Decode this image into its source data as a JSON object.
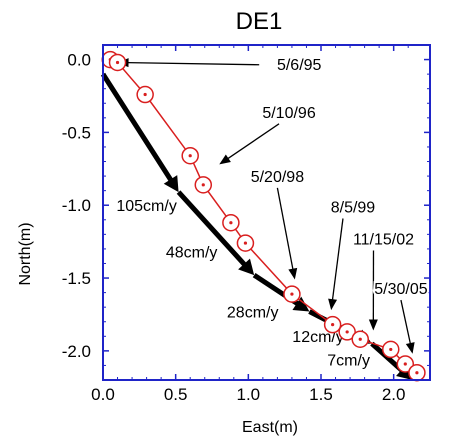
{
  "chart_data": {
    "type": "line",
    "title": "DE1",
    "xlabel": "East(m)",
    "ylabel": "North(m)",
    "xlim": [
      0.0,
      2.25
    ],
    "ylim": [
      -2.2,
      0.1
    ],
    "x_ticks": [
      0.0,
      0.5,
      1.0,
      1.5,
      2.0
    ],
    "x_tick_labels": [
      "0.0",
      "0.5",
      "1.0",
      "1.5",
      "2.0"
    ],
    "y_ticks": [
      0.0,
      -0.5,
      -1.0,
      -1.5,
      -2.0
    ],
    "y_tick_labels": [
      "0.0",
      "-0.5",
      "-1.0",
      "-1.5",
      "-2.0"
    ],
    "grid": false,
    "colors": {
      "series": "#d91f1f",
      "frame": "#1f24c8",
      "arrows": "#000000"
    },
    "series": [
      {
        "x": [
          0.05,
          0.1,
          0.29,
          0.6,
          0.69,
          0.88,
          0.98,
          1.3,
          1.58,
          1.68,
          1.77,
          1.98,
          2.08,
          2.16
        ],
        "y": [
          0.0,
          -0.02,
          -0.24,
          -0.66,
          -0.86,
          -1.12,
          -1.26,
          -1.61,
          -1.82,
          -1.87,
          -1.92,
          -1.99,
          -2.09,
          -2.15
        ]
      }
    ],
    "annotations": [
      {
        "text": "5/6/95",
        "x": 1.35,
        "y": -0.07,
        "target": [
          0.1,
          -0.02
        ]
      },
      {
        "text": "5/10/96",
        "x": 1.28,
        "y": -0.4,
        "target": [
          0.8,
          -0.72
        ]
      },
      {
        "text": "5/20/98",
        "x": 1.2,
        "y": -0.84,
        "target": [
          1.32,
          -1.51
        ]
      },
      {
        "text": "8/5/99",
        "x": 1.72,
        "y": -1.05,
        "target": [
          1.57,
          -1.72
        ]
      },
      {
        "text": "11/15/02",
        "x": 1.93,
        "y": -1.27,
        "target": [
          1.86,
          -1.86
        ]
      },
      {
        "text": "5/30/05",
        "x": 2.05,
        "y": -1.61,
        "target": [
          2.13,
          -2.02
        ]
      }
    ],
    "velocity_labels": [
      {
        "text": "105cm/y",
        "x": 0.3,
        "y": -1.04
      },
      {
        "text": "48cm/y",
        "x": 0.61,
        "y": -1.36
      },
      {
        "text": "28cm/y",
        "x": 1.03,
        "y": -1.77
      },
      {
        "text": "12cm/y",
        "x": 1.48,
        "y": -1.94
      },
      {
        "text": "7cm/y",
        "x": 1.69,
        "y": -2.1
      }
    ],
    "velocity_arrows": [
      {
        "from": [
          0.0,
          -0.1
        ],
        "to": [
          0.52,
          -0.91
        ]
      },
      {
        "from": [
          0.52,
          -0.91
        ],
        "to": [
          1.04,
          -1.48
        ]
      },
      {
        "from": [
          1.04,
          -1.48
        ],
        "to": [
          1.42,
          -1.73
        ]
      },
      {
        "from": [
          1.42,
          -1.73
        ],
        "to": [
          1.85,
          -1.95
        ]
      },
      {
        "from": [
          1.85,
          -1.95
        ],
        "to": [
          2.13,
          -2.2
        ]
      }
    ]
  }
}
